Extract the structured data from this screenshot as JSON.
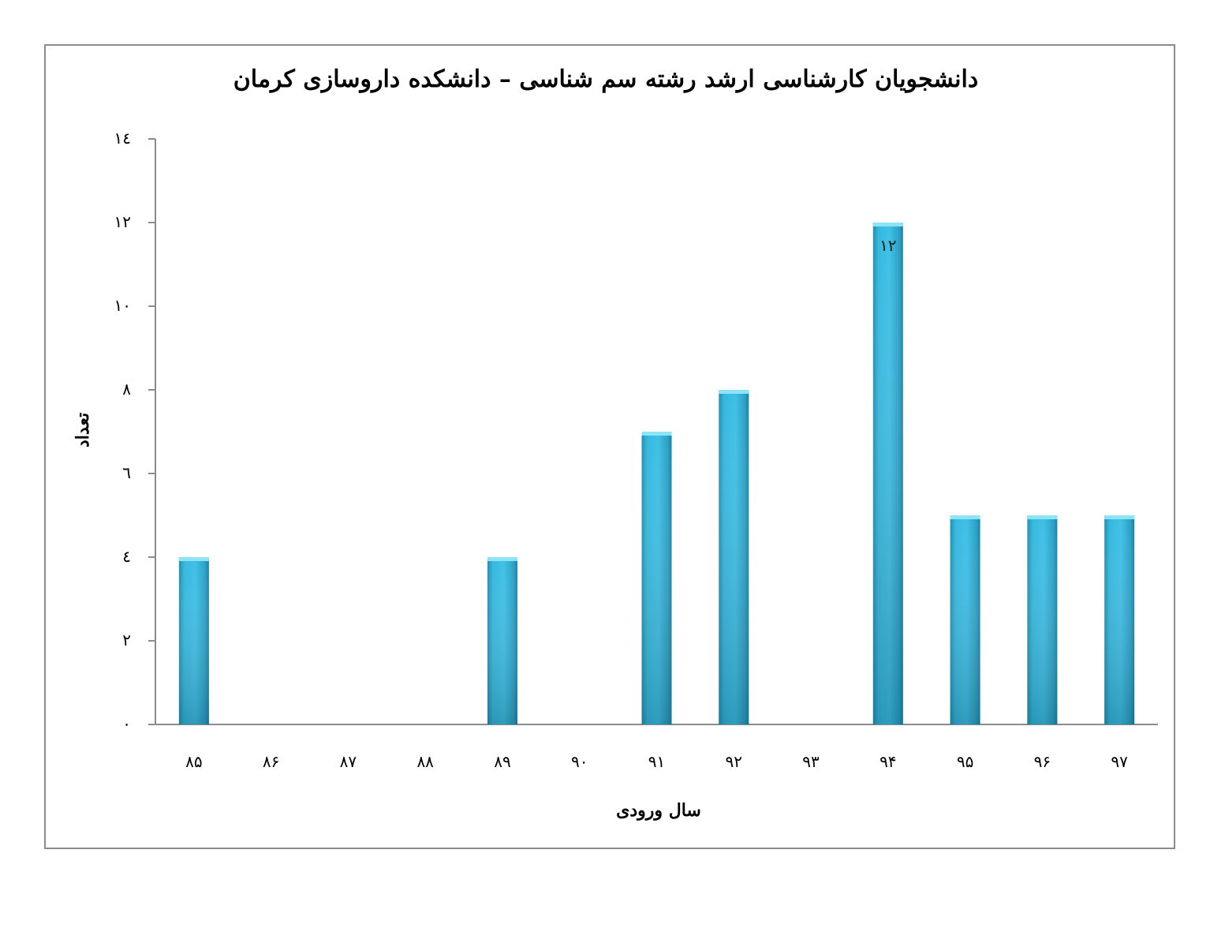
{
  "chart_data": {
    "type": "bar",
    "title": "دانشجویان کارشناسی ارشد رشته سم شناسی – دانشکده داروسازی کرمان",
    "xlabel": "سال ورودی",
    "ylabel": "تعداد",
    "categories": [
      "۸۵",
      "۸۶",
      "۸۷",
      "۸۸",
      "۸۹",
      "۹۰",
      "۹۱",
      "۹۲",
      "۹۳",
      "۹۴",
      "۹۵",
      "۹۶",
      "۹۷"
    ],
    "values": [
      4,
      0,
      0,
      0,
      4,
      0,
      7,
      8,
      0,
      12,
      5,
      5,
      5
    ],
    "ylim": [
      0,
      14
    ],
    "yticks": [
      0,
      2,
      4,
      6,
      8,
      10,
      12,
      14
    ],
    "ytick_labels": [
      "۰",
      "۲",
      "٤",
      "٦",
      "۸",
      "۱۰",
      "۱۲",
      "۱٤"
    ],
    "data_labels": [
      {
        "category_index": 9,
        "text": "۱۲"
      }
    ],
    "bar_color": "#31b2d8",
    "grid": false,
    "legend": "none"
  }
}
